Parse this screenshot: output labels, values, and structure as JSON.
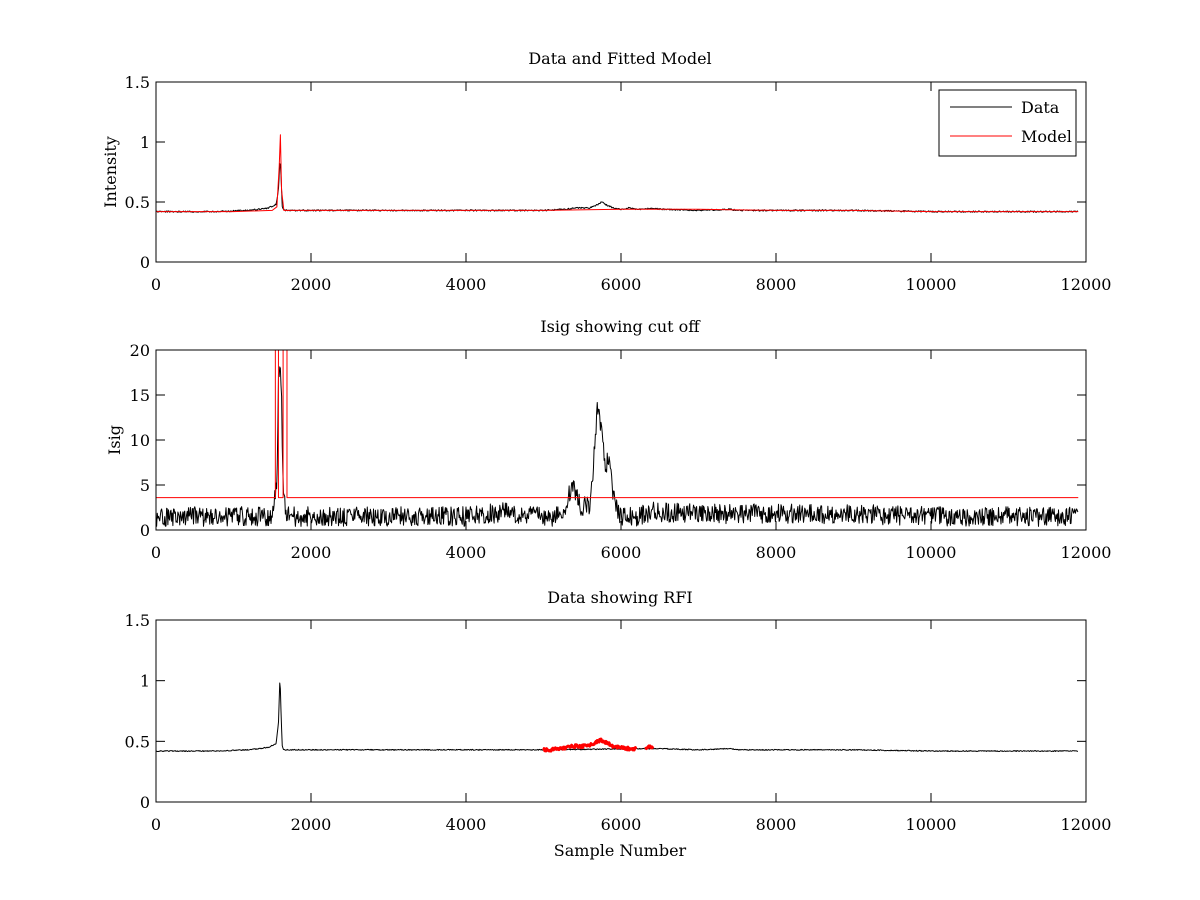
{
  "chart_data": [
    {
      "type": "line",
      "title": "Data and Fitted Model",
      "xlabel": "",
      "ylabel": "Intensity",
      "xlim": [
        0,
        12000
      ],
      "ylim": [
        0,
        1.5
      ],
      "xticks": [
        0,
        2000,
        4000,
        6000,
        8000,
        10000,
        12000
      ],
      "yticks": [
        0,
        0.5,
        1,
        1.5
      ],
      "xtick_labels": [
        "0",
        "2000",
        "4000",
        "6000",
        "8000",
        "10000",
        "12000"
      ],
      "ytick_labels": [
        "0",
        "0.5",
        "1",
        "1.5"
      ],
      "grid": false,
      "legend": {
        "placement": "top-right",
        "entries": [
          "Data",
          "Model"
        ]
      },
      "series": [
        {
          "name": "Data",
          "color": "#000000",
          "x": [
            0,
            400,
            800,
            1200,
            1450,
            1550,
            1580,
            1600,
            1615,
            1630,
            1650,
            1700,
            2000,
            3000,
            4000,
            5000,
            5300,
            5400,
            5500,
            5600,
            5700,
            5750,
            5800,
            5900,
            6000,
            6100,
            6200,
            6300,
            6400,
            6500,
            7000,
            7400,
            7500,
            8000,
            9000,
            10000,
            11000,
            11900
          ],
          "y": [
            0.42,
            0.42,
            0.42,
            0.43,
            0.45,
            0.48,
            0.6,
            0.86,
            0.7,
            0.45,
            0.43,
            0.43,
            0.43,
            0.43,
            0.43,
            0.43,
            0.44,
            0.45,
            0.45,
            0.45,
            0.48,
            0.5,
            0.48,
            0.45,
            0.44,
            0.45,
            0.44,
            0.44,
            0.45,
            0.44,
            0.43,
            0.44,
            0.43,
            0.43,
            0.43,
            0.42,
            0.42,
            0.42
          ]
        },
        {
          "name": "Model",
          "color": "#ff0000",
          "x": [
            0,
            1000,
            1500,
            1560,
            1590,
            1605,
            1620,
            1650,
            2000,
            4000,
            5000,
            6000,
            7000,
            8000,
            9000,
            10000,
            11000,
            11900
          ],
          "y": [
            0.42,
            0.42,
            0.43,
            0.46,
            0.8,
            1.06,
            0.6,
            0.43,
            0.43,
            0.43,
            0.43,
            0.44,
            0.44,
            0.43,
            0.43,
            0.42,
            0.42,
            0.42
          ]
        }
      ]
    },
    {
      "type": "line",
      "title": "Isig showing cut off",
      "xlabel": "",
      "ylabel": "Isig",
      "xlim": [
        0,
        12000
      ],
      "ylim": [
        0,
        20
      ],
      "xticks": [
        0,
        2000,
        4000,
        6000,
        8000,
        10000,
        12000
      ],
      "yticks": [
        0,
        5,
        10,
        15,
        20
      ],
      "xtick_labels": [
        "0",
        "2000",
        "4000",
        "6000",
        "8000",
        "10000",
        "12000"
      ],
      "ytick_labels": [
        "0",
        "5",
        "10",
        "15",
        "20"
      ],
      "grid": false,
      "series": [
        {
          "color": "#000000",
          "x": [
            0,
            500,
            1000,
            1500,
            1560,
            1580,
            1600,
            1620,
            1640,
            1700,
            2000,
            3000,
            4000,
            4500,
            5000,
            5200,
            5300,
            5350,
            5400,
            5450,
            5500,
            5550,
            5600,
            5650,
            5700,
            5750,
            5800,
            5850,
            5900,
            5950,
            6000,
            6200,
            6400,
            7000,
            8000,
            9000,
            10000,
            11000,
            11900
          ],
          "y": [
            1.5,
            1.5,
            1.5,
            1.5,
            5,
            16.5,
            18,
            14.5,
            4,
            1.5,
            1.5,
            1.5,
            1.5,
            2,
            1.5,
            1.5,
            3,
            4.5,
            4.5,
            3.5,
            2,
            3,
            2,
            8,
            14,
            11,
            7,
            8,
            4,
            2,
            1.5,
            1.5,
            2,
            1.8,
            1.8,
            1.8,
            1.5,
            1.5,
            1.5
          ]
        },
        {
          "color": "#ff0000",
          "x": [
            0,
            1540,
            1540,
            1580,
            1580,
            1640,
            1640,
            1690,
            1690,
            11900
          ],
          "y": [
            3.6,
            3.6,
            20,
            20,
            3.6,
            3.6,
            20,
            20,
            3.6,
            3.6
          ]
        }
      ]
    },
    {
      "type": "line",
      "title": "Data showing RFI",
      "xlabel": "Sample Number",
      "ylabel": "",
      "xlim": [
        0,
        12000
      ],
      "ylim": [
        0,
        1.5
      ],
      "xticks": [
        0,
        2000,
        4000,
        6000,
        8000,
        10000,
        12000
      ],
      "yticks": [
        0,
        0.5,
        1,
        1.5
      ],
      "xtick_labels": [
        "0",
        "2000",
        "4000",
        "6000",
        "8000",
        "10000",
        "12000"
      ],
      "ytick_labels": [
        "0",
        "0.5",
        "1",
        "1.5"
      ],
      "grid": false,
      "series": [
        {
          "color": "#000000",
          "x": [
            0,
            400,
            800,
            1200,
            1450,
            1550,
            1580,
            1600,
            1615,
            1630,
            1650,
            1700,
            2000,
            3000,
            4000,
            5000,
            6400,
            6500,
            7000,
            7400,
            7500,
            8000,
            9000,
            10000,
            11000,
            11900
          ],
          "y": [
            0.42,
            0.42,
            0.42,
            0.43,
            0.45,
            0.48,
            0.65,
            1.04,
            0.7,
            0.45,
            0.43,
            0.43,
            0.43,
            0.43,
            0.43,
            0.43,
            0.44,
            0.44,
            0.43,
            0.44,
            0.43,
            0.43,
            0.43,
            0.42,
            0.42,
            0.42
          ]
        },
        {
          "color": "#ff0000",
          "x": [
            5000,
            5100,
            5200,
            5300,
            5400,
            5500,
            5600,
            5700,
            5750,
            5800,
            5900,
            6000,
            6100,
            6200
          ],
          "y": [
            0.43,
            0.43,
            0.44,
            0.45,
            0.46,
            0.46,
            0.47,
            0.5,
            0.51,
            0.49,
            0.46,
            0.45,
            0.44,
            0.44
          ]
        },
        {
          "color": "#ff0000",
          "x": [
            6320,
            6370,
            6420
          ],
          "y": [
            0.45,
            0.46,
            0.45
          ]
        }
      ]
    }
  ]
}
